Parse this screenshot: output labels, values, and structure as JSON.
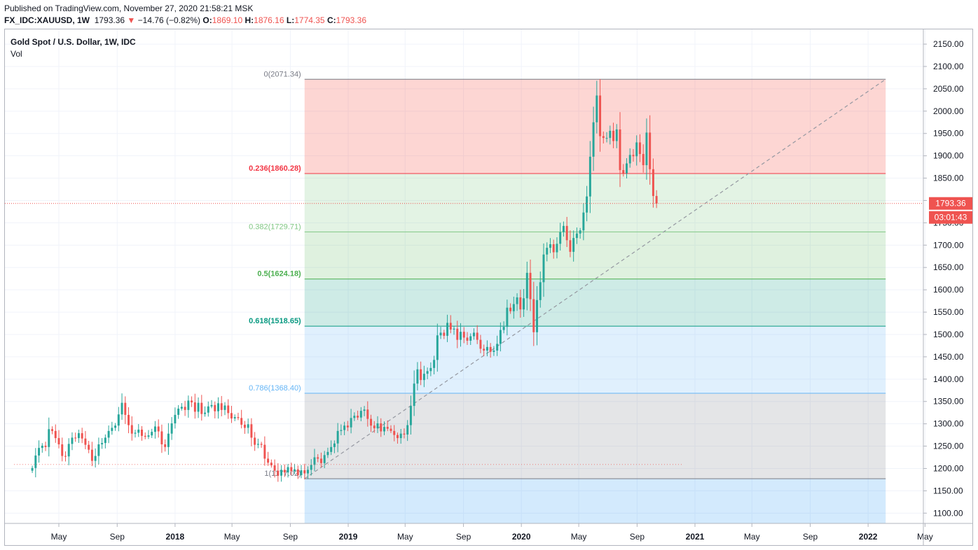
{
  "header": {
    "published": "Published on TradingView.com, November 27, 2020 21:58:21 MSK",
    "symbol": "FX_IDC:XAUUSD, 1W",
    "last": "1793.36",
    "change": "−14.76 (−0.82%)",
    "o_label": "O:",
    "o": "1869.10",
    "h_label": "H:",
    "h": "1876.16",
    "l_label": "L:",
    "l": "1774.35",
    "c_label": "C:",
    "c": "1793.36",
    "down_arrow_icon": "triangle-down-icon"
  },
  "legend": {
    "title": "Gold Spot / U.S. Dollar, 1W, IDC",
    "vol": "Vol"
  },
  "colors": {
    "up": "#26a69a",
    "down": "#ef5350"
  },
  "price_badge": {
    "price": "1793.36",
    "countdown": "03:01:43"
  },
  "fib": [
    {
      "label": "0(2071.34)",
      "price": 2071.34,
      "color": "#787b86",
      "fill": "rgba(244,67,54,0.22)"
    },
    {
      "label": "0.236(1860.28)",
      "price": 1860.28,
      "color": "#f23645",
      "fill": "rgba(129,199,132,0.22)"
    },
    {
      "label": "0.382(1729.71)",
      "price": 1729.71,
      "color": "#81c784",
      "fill": "rgba(76,175,80,0.18)"
    },
    {
      "label": "0.5(1624.18)",
      "price": 1624.18,
      "color": "#4caf50",
      "fill": "rgba(8,153,129,0.2)"
    },
    {
      "label": "0.618(1518.65)",
      "price": 1518.65,
      "color": "#089981",
      "fill": "rgba(100,181,246,0.2)"
    },
    {
      "label": "0.786(1368.40)",
      "price": 1368.4,
      "color": "#64b5f6",
      "fill": "rgba(120,123,134,0.2)"
    },
    {
      "label": "1(1177.02)",
      "price": 1177.02,
      "color": "#787b86",
      "fill": "rgba(33,150,243,0.2)"
    }
  ],
  "chart_data": {
    "type": "candlestick",
    "title": "Gold Spot / U.S. Dollar, 1W, IDC",
    "interval": "1W",
    "ylim": [
      1077,
      2183
    ],
    "y_ticks": [
      1100,
      1150,
      1200,
      1250,
      1300,
      1350,
      1400,
      1450,
      1500,
      1550,
      1600,
      1650,
      1700,
      1750,
      1800,
      1850,
      1900,
      1950,
      2000,
      2050,
      2100,
      2150
    ],
    "x_ticks": [
      "May",
      "Sep",
      "2018",
      "May",
      "Sep",
      "2019",
      "May",
      "Sep",
      "2020",
      "May",
      "Sep",
      "2021",
      "May",
      "Sep",
      "2022",
      "May"
    ],
    "x_tick_dates": [
      "2017-05-01",
      "2017-09-01",
      "2018-01-01",
      "2018-05-01",
      "2018-09-01",
      "2019-01-01",
      "2019-05-01",
      "2019-09-01",
      "2020-01-01",
      "2020-05-01",
      "2020-09-01",
      "2021-01-01",
      "2021-05-01",
      "2021-09-01",
      "2022-01-01",
      "2022-05-01"
    ],
    "last_price": 1793.36,
    "fib_retracement": {
      "high": 2071.34,
      "low": 1177.02,
      "levels": [
        0,
        0.236,
        0.382,
        0.5,
        0.618,
        0.786,
        1
      ]
    },
    "anchors": {
      "fib_start": {
        "x": "2018-10-01",
        "y": 1177.02
      },
      "fib_end": {
        "x": "2022-02-07",
        "y": 2071.34
      },
      "reference_line_end": {
        "x": "2020-11-23",
        "y": 1209
      }
    },
    "weekly_closes": {
      "start": "2017-03-06",
      "step_days": 7,
      "values": [
        1201,
        1229,
        1246,
        1251,
        1248,
        1288,
        1284,
        1268,
        1254,
        1228,
        1227,
        1255,
        1269,
        1268,
        1279,
        1267,
        1253,
        1242,
        1217,
        1228,
        1254,
        1257,
        1269,
        1284,
        1291,
        1296,
        1321,
        1347,
        1320,
        1297,
        1278,
        1280,
        1287,
        1273,
        1271,
        1274,
        1282,
        1294,
        1283,
        1254,
        1248,
        1278,
        1301,
        1320,
        1334,
        1338,
        1331,
        1352,
        1348,
        1327,
        1347,
        1322,
        1325,
        1339,
        1342,
        1328,
        1346,
        1331,
        1341,
        1324,
        1312,
        1315,
        1313,
        1298,
        1291,
        1299,
        1269,
        1253,
        1255,
        1253,
        1222,
        1213,
        1207,
        1195,
        1184,
        1197,
        1191,
        1203,
        1194,
        1198,
        1185,
        1196,
        1189,
        1197,
        1208,
        1225,
        1222,
        1212,
        1230,
        1237,
        1248,
        1256,
        1284,
        1286,
        1296,
        1292,
        1313,
        1318,
        1314,
        1329,
        1332,
        1311,
        1296,
        1290,
        1301,
        1283,
        1293,
        1289,
        1284,
        1275,
        1268,
        1278,
        1276,
        1297,
        1340,
        1390,
        1422,
        1398,
        1412,
        1418,
        1425,
        1443,
        1498,
        1504,
        1497,
        1526,
        1511,
        1513,
        1488,
        1506,
        1493,
        1486,
        1496,
        1504,
        1488,
        1468,
        1464,
        1472,
        1461,
        1464,
        1479,
        1510,
        1517,
        1560,
        1552,
        1568,
        1583,
        1556,
        1581,
        1638,
        1579,
        1505,
        1577,
        1617,
        1679,
        1694,
        1702,
        1684,
        1703,
        1729,
        1743,
        1711,
        1685,
        1716,
        1726,
        1733,
        1773,
        1809,
        1898,
        1975,
        2035,
        1944,
        1940,
        1940,
        1956,
        1933,
        1959,
        1868,
        1861,
        1883,
        1902,
        1899,
        1930,
        1904,
        1879,
        1952,
        1870,
        1810,
        1793
      ]
    }
  }
}
